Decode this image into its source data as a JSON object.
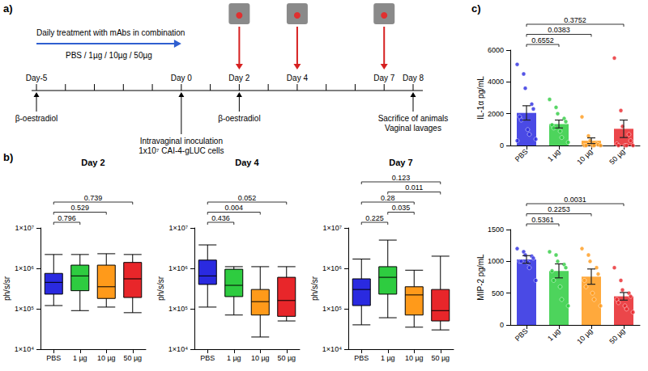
{
  "panel_labels": [
    "a)",
    "b)",
    "c)"
  ],
  "timeline": {
    "day_range": [
      -5,
      8
    ],
    "treatment": {
      "from": -5,
      "to": 0,
      "texts": [
        "Daily treatment with mAbs in combination",
        "PBS / 1µg / 10µg / 50µg"
      ]
    },
    "events": [
      {
        "day": -5,
        "label": "Day-5",
        "below": [
          "β-oestradiol"
        ]
      },
      {
        "day": 0,
        "label": "Day 0",
        "below": [
          "Intravaginal inoculation",
          "1x10⁷ CAI-4-gLUC cells"
        ]
      },
      {
        "day": 2,
        "label": "Day 2",
        "imaging": true,
        "below": [
          "β-oestradiol"
        ]
      },
      {
        "day": 4,
        "label": "Day 4",
        "imaging": true
      },
      {
        "day": 7,
        "label": "Day 7",
        "imaging": true
      },
      {
        "day": 8,
        "label": "Day 8",
        "below": [
          "Sacrifice of animals",
          "Vaginal lavages"
        ]
      }
    ]
  },
  "chart_data": [
    {
      "type": "boxplot",
      "title": "Day 2",
      "ylabel": "ph/s/sr",
      "log": "y",
      "grid": false,
      "categories": [
        "PBS",
        "1 µg",
        "10 µg",
        "50 µg"
      ],
      "colors": [
        "#2a2ae0",
        "#2ecc40",
        "#ff9a1a",
        "#e8262a"
      ],
      "ylim": [
        10000,
        10000000
      ],
      "yticks": [
        {
          "value": 10000,
          "label": "1×10⁴"
        },
        {
          "value": 100000,
          "label": "1×10⁵"
        },
        {
          "value": 1000000,
          "label": "1×10⁶"
        },
        {
          "value": 10000000,
          "label": "1×10⁷"
        }
      ],
      "boxes": [
        [
          120000,
          230000,
          450000,
          750000,
          2200000
        ],
        [
          90000,
          280000,
          650000,
          1200000,
          2200000
        ],
        [
          110000,
          180000,
          350000,
          1200000,
          2300000
        ],
        [
          80000,
          190000,
          550000,
          1400000,
          2200000
        ]
      ],
      "comparisons": [
        {
          "from": 0,
          "to": 1,
          "p": 0.796
        },
        {
          "from": 0,
          "to": 2,
          "p": 0.529
        },
        {
          "from": 0,
          "to": 3,
          "p": 0.739
        }
      ]
    },
    {
      "type": "boxplot",
      "title": "Day 4",
      "ylabel": "ph/s/sr",
      "log": "y",
      "grid": false,
      "categories": [
        "PBS",
        "1 µg",
        "10 µg",
        "50 µg"
      ],
      "colors": [
        "#2a2ae0",
        "#2ecc40",
        "#ff9a1a",
        "#e8262a"
      ],
      "ylim": [
        10000,
        10000000
      ],
      "yticks": [
        {
          "value": 10000,
          "label": "1×10⁴"
        },
        {
          "value": 100000,
          "label": "1×10⁵"
        },
        {
          "value": 1000000,
          "label": "1×10⁶"
        },
        {
          "value": 10000000,
          "label": "1×10⁷"
        }
      ],
      "boxes": [
        [
          110000,
          400000,
          650000,
          1600000,
          3800000
        ],
        [
          70000,
          200000,
          380000,
          950000,
          1100000
        ],
        [
          20000,
          70000,
          150000,
          300000,
          1100000
        ],
        [
          50000,
          65000,
          160000,
          600000,
          1100000
        ]
      ],
      "comparisons": [
        {
          "from": 0,
          "to": 1,
          "p": 0.436
        },
        {
          "from": 0,
          "to": 2,
          "p": 0.004
        },
        {
          "from": 0,
          "to": 3,
          "p": 0.052
        }
      ]
    },
    {
      "type": "boxplot",
      "title": "Day 7",
      "ylabel": "ph/s/sr",
      "log": "y",
      "grid": false,
      "categories": [
        "PBS",
        "1 µg",
        "10 µg",
        "50 µg"
      ],
      "colors": [
        "#2a2ae0",
        "#2ecc40",
        "#ff9a1a",
        "#e8262a"
      ],
      "ylim": [
        10000,
        10000000
      ],
      "yticks": [
        {
          "value": 10000,
          "label": "1×10⁴"
        },
        {
          "value": 100000,
          "label": "1×10⁵"
        },
        {
          "value": 1000000,
          "label": "1×10⁶"
        },
        {
          "value": 10000000,
          "label": "1×10⁷"
        }
      ],
      "boxes": [
        [
          40000,
          120000,
          300000,
          550000,
          1700000
        ],
        [
          60000,
          230000,
          600000,
          1100000,
          5000000
        ],
        [
          35000,
          70000,
          220000,
          350000,
          900000
        ],
        [
          30000,
          50000,
          90000,
          300000,
          2000000
        ]
      ],
      "comparisons": [
        {
          "from": 0,
          "to": 1,
          "p": 0.225
        },
        {
          "from": 0,
          "to": 2,
          "p": 0.28
        },
        {
          "from": 0,
          "to": 3,
          "p": 0.123
        },
        {
          "from": 1,
          "to": 2,
          "p": 0.035
        },
        {
          "from": 1,
          "to": 3,
          "p": 0.011
        }
      ]
    },
    {
      "type": "bar",
      "ylabel": "IL-1α pg/mL",
      "grid": false,
      "categories": [
        "PBS",
        "1 µg",
        "10 µg",
        "50 µg"
      ],
      "colors": [
        "#2a2ae0",
        "#2ecc40",
        "#ff9a1a",
        "#e8262a"
      ],
      "ylim": [
        0,
        6000
      ],
      "yticks": [
        0,
        2000,
        4000,
        6000
      ],
      "values": [
        2050,
        1350,
        300,
        1050
      ],
      "errors": [
        450,
        250,
        180,
        550
      ],
      "points": [
        [
          5100,
          4500,
          3600,
          2600,
          2300,
          1800,
          1600,
          1000,
          700,
          400,
          300
        ],
        [
          2900,
          2400,
          2000,
          1700,
          1500,
          1300,
          1100,
          900,
          500,
          200
        ],
        [
          1800,
          600,
          300,
          100,
          50,
          0,
          0,
          0,
          0,
          0
        ],
        [
          5500,
          2200,
          1200,
          700,
          300,
          100,
          0,
          0,
          0,
          0
        ]
      ],
      "comparisons": [
        {
          "from": 0,
          "to": 1,
          "p": 0.6552
        },
        {
          "from": 0,
          "to": 2,
          "p": 0.0383
        },
        {
          "from": 0,
          "to": 3,
          "p": 0.3752
        }
      ]
    },
    {
      "type": "bar",
      "ylabel": "MIP-2 pg/mL",
      "grid": false,
      "categories": [
        "PBS",
        "1 µg",
        "10 µg",
        "50 µg"
      ],
      "colors": [
        "#2a2ae0",
        "#2ecc40",
        "#ff9a1a",
        "#e8262a"
      ],
      "ylim": [
        0,
        1500
      ],
      "yticks": [
        0,
        500,
        1000,
        1500
      ],
      "values": [
        1030,
        850,
        760,
        450
      ],
      "errors": [
        60,
        110,
        120,
        60
      ],
      "points": [
        [
          1200,
          1150,
          1100,
          1080,
          1050,
          1000,
          1000,
          980,
          900,
          700
        ],
        [
          1150,
          1100,
          1000,
          950,
          900,
          850,
          700,
          600,
          400,
          300
        ],
        [
          1200,
          1100,
          1000,
          900,
          800,
          700,
          600,
          500,
          400,
          300
        ],
        [
          900,
          700,
          550,
          500,
          450,
          400,
          350,
          300,
          250,
          200
        ]
      ],
      "comparisons": [
        {
          "from": 0,
          "to": 1,
          "p": 0.5361
        },
        {
          "from": 0,
          "to": 2,
          "p": 0.2253
        },
        {
          "from": 0,
          "to": 3,
          "p": 0.0031
        }
      ]
    }
  ]
}
